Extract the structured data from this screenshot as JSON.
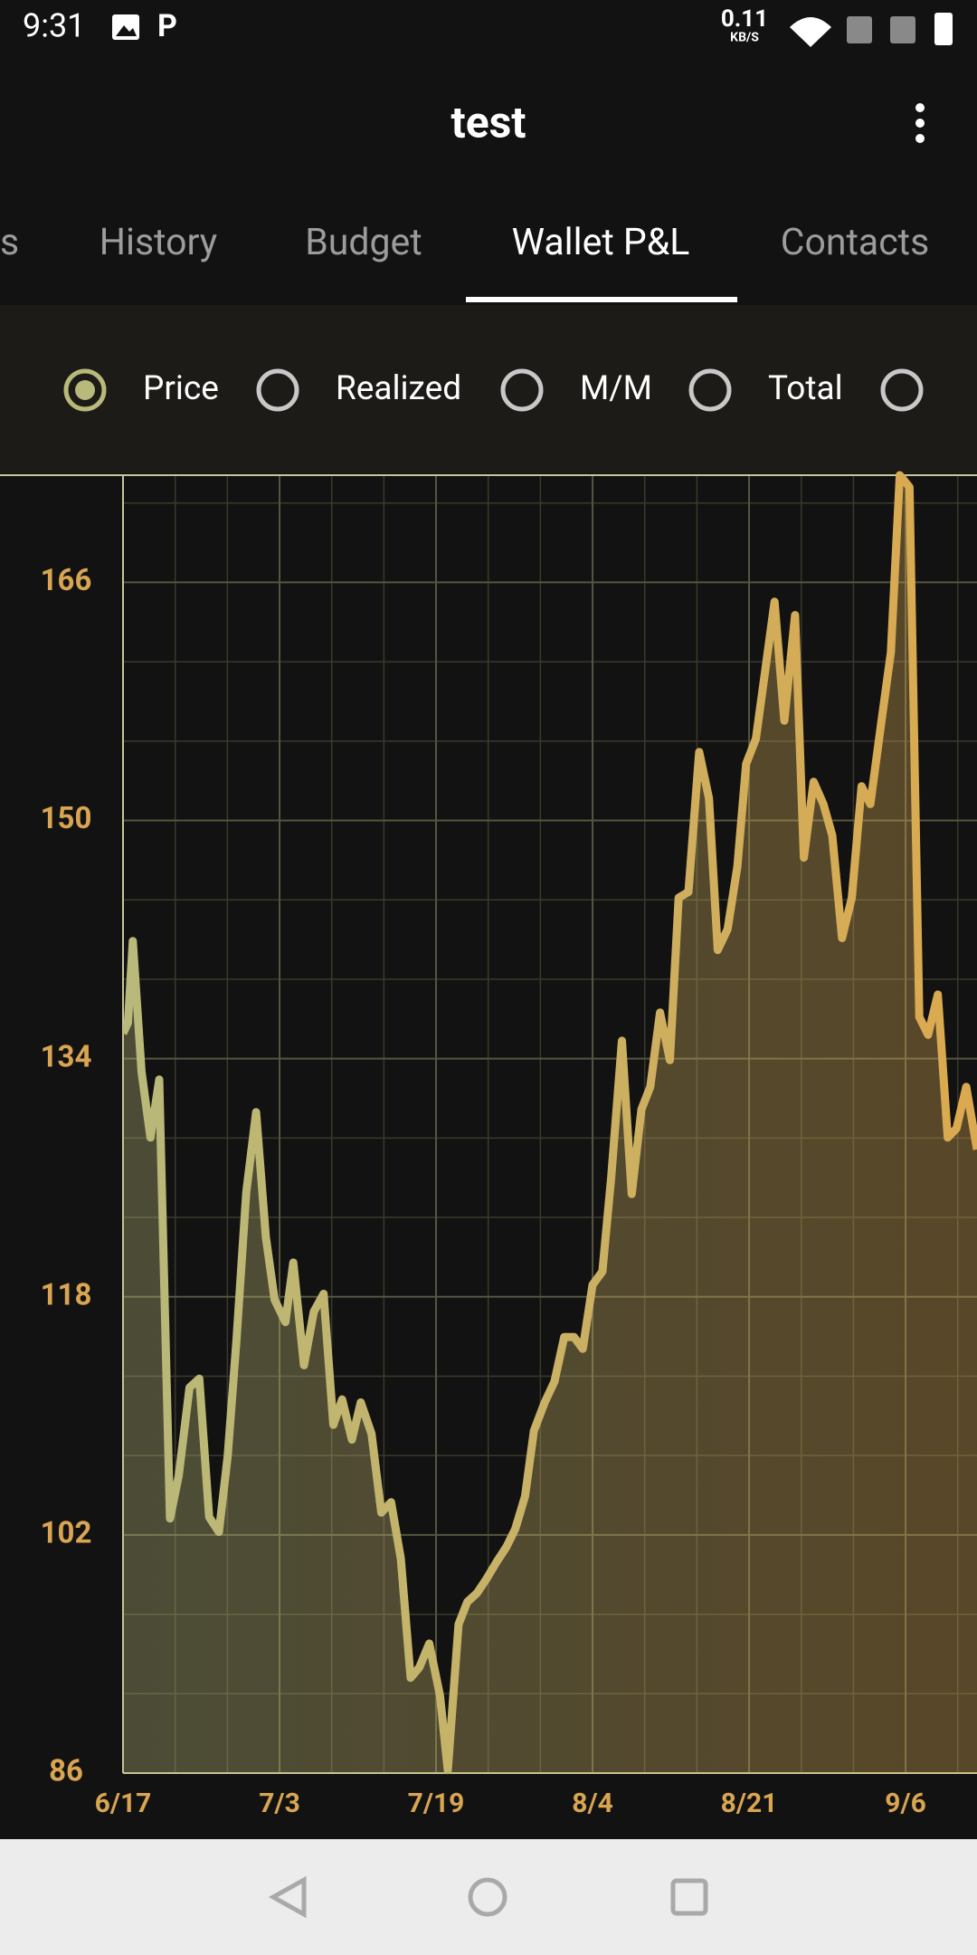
{
  "status_bar": {
    "time": "9:31",
    "speed": "0.11",
    "speed_unit": "KB/S"
  },
  "app_bar": {
    "title": "test"
  },
  "tabs": {
    "items": [
      "s",
      "History",
      "Budget",
      "Wallet P&L",
      "Contacts"
    ],
    "selected": 3
  },
  "options": {
    "items": [
      "Price",
      "Realized",
      "M/M",
      "Total",
      null
    ],
    "selected": 0
  },
  "chart_data": {
    "type": "line",
    "x": [
      0,
      0.5,
      1,
      1.9,
      2.8,
      3.7,
      4.8,
      5.7,
      6.8,
      7.8,
      8.8,
      9.8,
      10.7,
      11.6,
      12.6,
      13.6,
      14.6,
      15.5,
      16.6,
      17.4,
      18.5,
      19.5,
      20.5,
      21.5,
      22.4,
      23.4,
      24.3,
      25.4,
      26.4,
      27.4,
      28.4,
      29.4,
      30.3,
      31.3,
      32.4,
      33.2,
      34.3,
      35.2,
      36.2,
      37.2,
      38.2,
      39.2,
      40.1,
      41.1,
      42,
      43.1,
      44.1,
      45.1,
      46.1,
      47,
      48,
      49,
      49.9,
      51,
      52,
      53,
      53.9,
      54.9,
      55.9,
      56.8,
      57.8,
      58.9,
      59.9,
      60.8,
      61.8,
      62.8,
      63.7,
      64.7,
      65.7,
      66.6,
      67.6,
      68.7,
      69.6,
      70.6,
      71.6,
      72.5,
      73.5,
      74.5,
      75.5,
      76.4,
      77.5,
      78.5,
      79.4,
      80.4,
      81.4,
      82.3,
      83.3,
      84.3,
      85.2,
      86.2,
      87.3
    ],
    "series": [
      {
        "name": "Price",
        "color": "#c9b468",
        "values": [
          135.7,
          136.4,
          141.9,
          133.1,
          128.7,
          132.6,
          103.1,
          106,
          111.9,
          112.5,
          103.2,
          102.2,
          107.3,
          115.1,
          125,
          130.4,
          122,
          117.8,
          116.3,
          120.3,
          113.4,
          117,
          118.2,
          109.4,
          111.1,
          108.4,
          110.9,
          108.8,
          103.5,
          104.2,
          100.4,
          92.4,
          93.1,
          94.7,
          91.2,
          86.2,
          96,
          97.5,
          98.1,
          99.1,
          100.2,
          101.2,
          102.4,
          104.6,
          109,
          110.9,
          112.3,
          115.3,
          115.3,
          114.5,
          118.8,
          119.7,
          126,
          135.2,
          124.9,
          130.6,
          132.1,
          137.1,
          133.9,
          144.8,
          145.2,
          154.6,
          151.5,
          141.3,
          142.7,
          146.9,
          153.8,
          155.5,
          160.3,
          164.7,
          156.7,
          163.8,
          147.5,
          152.6,
          151.1,
          149,
          142.1,
          144.8,
          152.3,
          151.1,
          156.5,
          161.3,
          173.2,
          172.4,
          136.8,
          135.6,
          138.3,
          128.7,
          129.3,
          132.1,
          127.9
        ]
      }
    ],
    "gradient": [
      "#b8b97a",
      "#dba94f"
    ],
    "xlim": [
      0,
      87.3
    ],
    "xticks": [
      {
        "value": 0,
        "label": "6/17"
      },
      {
        "value": 16,
        "label": "7/3"
      },
      {
        "value": 32,
        "label": "7/19"
      },
      {
        "value": 48,
        "label": "8/4"
      },
      {
        "value": 64,
        "label": "8/21"
      },
      {
        "value": 80,
        "label": "9/6"
      }
    ],
    "ylim": [
      86,
      173.2
    ],
    "yticks": [
      86,
      102,
      118,
      134,
      150,
      166
    ],
    "grid": true
  }
}
